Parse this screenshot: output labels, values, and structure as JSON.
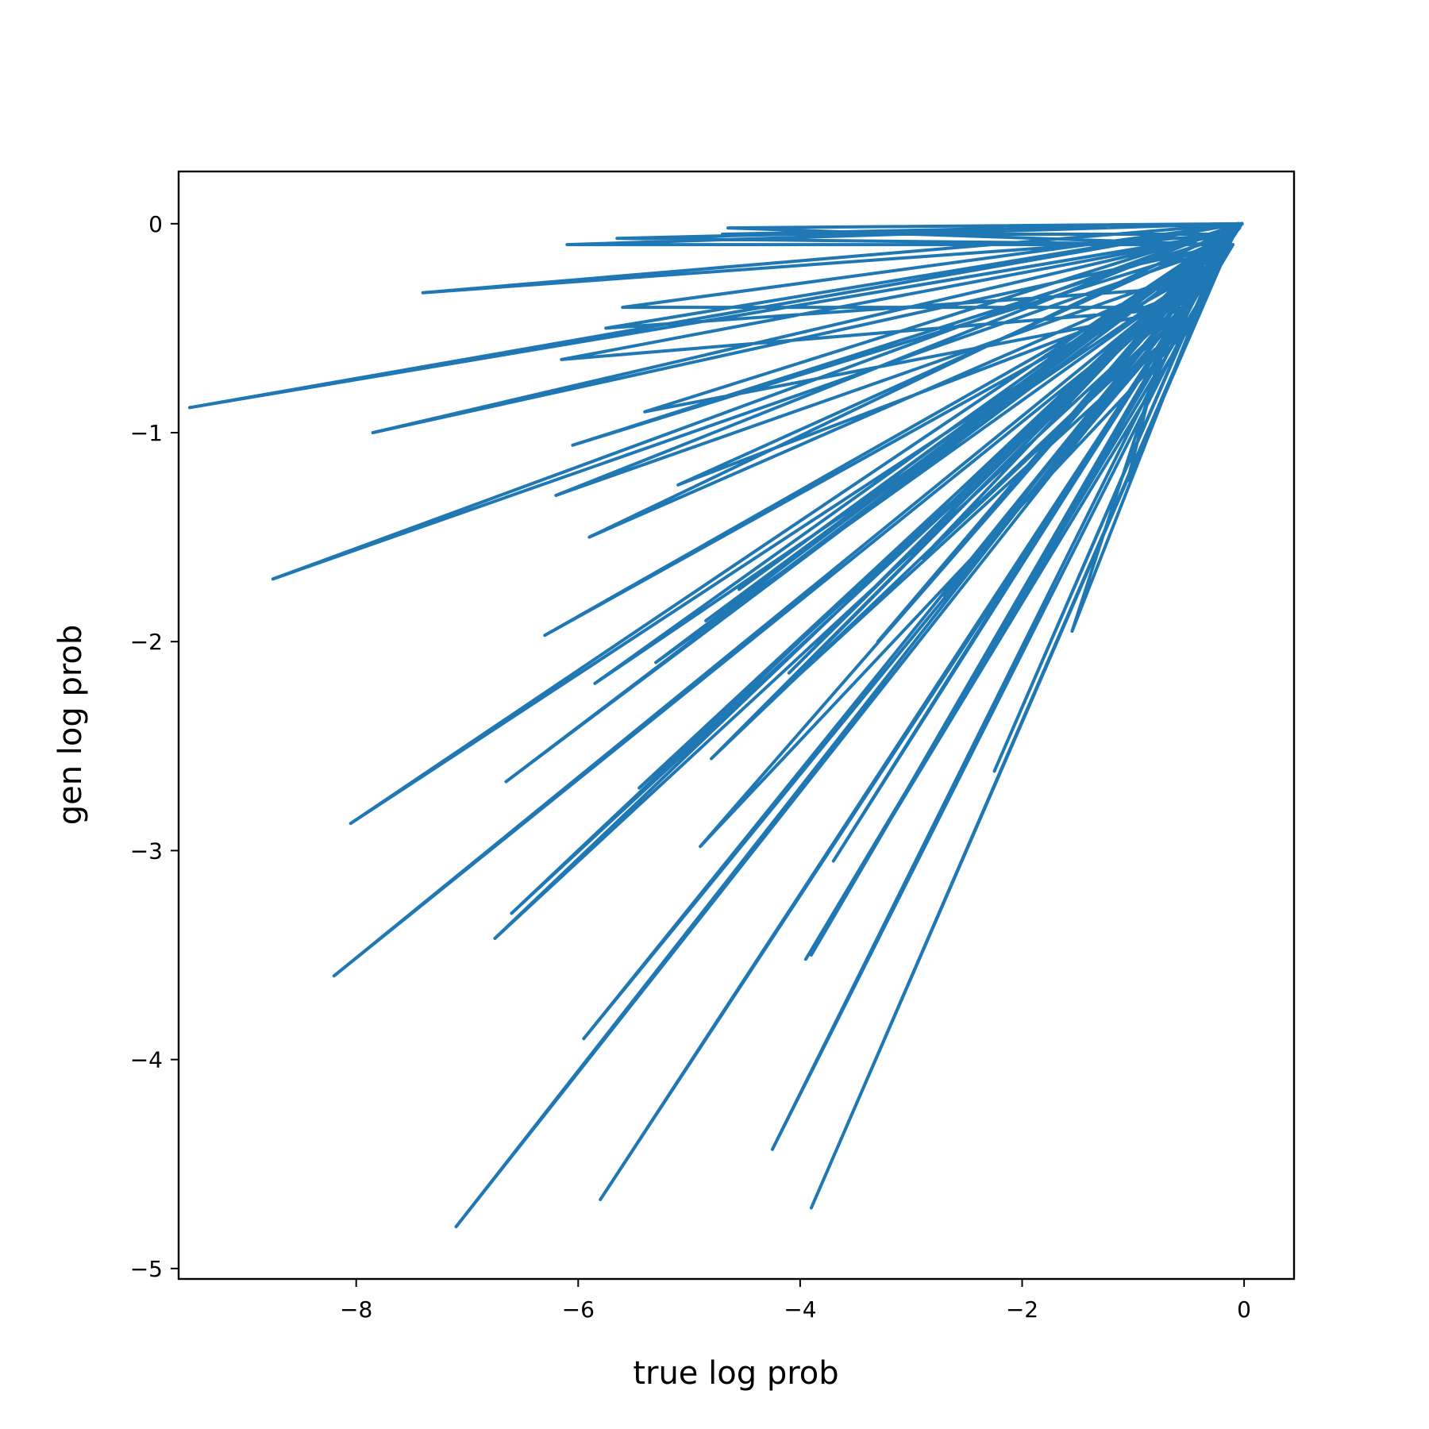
{
  "chart_data": {
    "type": "line",
    "title": "",
    "xlabel": "true log prob",
    "ylabel": "gen log prob",
    "xlim": [
      -9.6,
      0.45
    ],
    "ylim": [
      -5.05,
      0.25
    ],
    "xticks": [
      -8,
      -6,
      -4,
      -2,
      0
    ],
    "yticks": [
      0,
      -1,
      -2,
      -3,
      -4,
      -5
    ],
    "xtick_labels": [
      "−8",
      "−6",
      "−4",
      "−2",
      "0"
    ],
    "ytick_labels": [
      "0",
      "−1",
      "−2",
      "−3",
      "−4",
      "−5"
    ],
    "grid": false,
    "legend": "none",
    "series": [
      {
        "color": "#1f77b4",
        "x": [
          -0.02,
          -5.65,
          -0.3,
          -6.1,
          -0.05,
          -7.4,
          -0.1,
          -4.7,
          -0.04,
          -9.5,
          -0.2,
          -7.85,
          -0.15,
          -8.75,
          -0.05,
          -6.2,
          -0.3,
          -5.9,
          -0.02,
          -8.05,
          -0.1,
          -8.2,
          -0.25,
          -7.1,
          -0.02,
          -5.8,
          -0.05,
          -3.9,
          -0.1,
          -4.25,
          -0.2,
          -6.75,
          -0.4,
          -5.95,
          -0.02,
          -6.65,
          -0.08,
          -5.45,
          -0.3,
          -6.3,
          -0.1,
          -3.95,
          -0.5,
          -4.9,
          -0.04,
          -4.8,
          -0.35,
          -2.25,
          -0.15,
          -1.55,
          -0.6,
          -5.6,
          -0.02,
          -4.65,
          -0.2,
          -6.05,
          -0.1,
          -5.1,
          -0.4,
          -5.75,
          -0.05,
          -3.7,
          -0.2,
          -4.3,
          -0.8,
          -2.7,
          -0.1,
          -3.9,
          -0.3,
          -5.3,
          -0.04,
          -4.55,
          -0.15,
          -6.15,
          -0.5,
          -5.4,
          -0.02,
          -4.1,
          -0.25,
          -3.3,
          -0.1,
          -2.9,
          -0.7,
          -1.05,
          -0.05,
          -5.85,
          -0.3,
          -6.6,
          -0.12,
          -4.85,
          -0.02
        ],
        "y": [
          0,
          -0.07,
          -0.1,
          -0.1,
          0,
          -0.33,
          -0.05,
          -0.05,
          0,
          -0.88,
          -0.05,
          -1.0,
          -0.1,
          -1.7,
          0,
          -1.3,
          -0.2,
          -1.5,
          0,
          -2.87,
          -0.1,
          -3.6,
          -0.2,
          -4.8,
          0,
          -4.67,
          0,
          -4.71,
          -0.05,
          -4.43,
          -0.1,
          -3.42,
          -0.3,
          -3.9,
          0,
          -2.67,
          -0.05,
          -2.7,
          -0.2,
          -1.97,
          -0.1,
          -3.52,
          -0.5,
          -2.98,
          -0.02,
          -2.56,
          -0.3,
          -2.62,
          -0.05,
          -1.95,
          -0.4,
          -0.4,
          0,
          -0.02,
          -0.1,
          -1.06,
          -0.05,
          -1.25,
          -0.3,
          -0.5,
          0,
          -3.05,
          -0.1,
          -2.3,
          -0.6,
          -1.78,
          -0.05,
          -3.5,
          -0.2,
          -2.1,
          0,
          -1.75,
          -0.05,
          -0.65,
          -0.4,
          -0.9,
          0,
          -2.15,
          -0.1,
          -2.0,
          -0.03,
          -1.6,
          -0.5,
          -1.23,
          0,
          -2.2,
          -0.2,
          -3.3,
          -0.05,
          -1.9,
          0
        ]
      }
    ]
  }
}
